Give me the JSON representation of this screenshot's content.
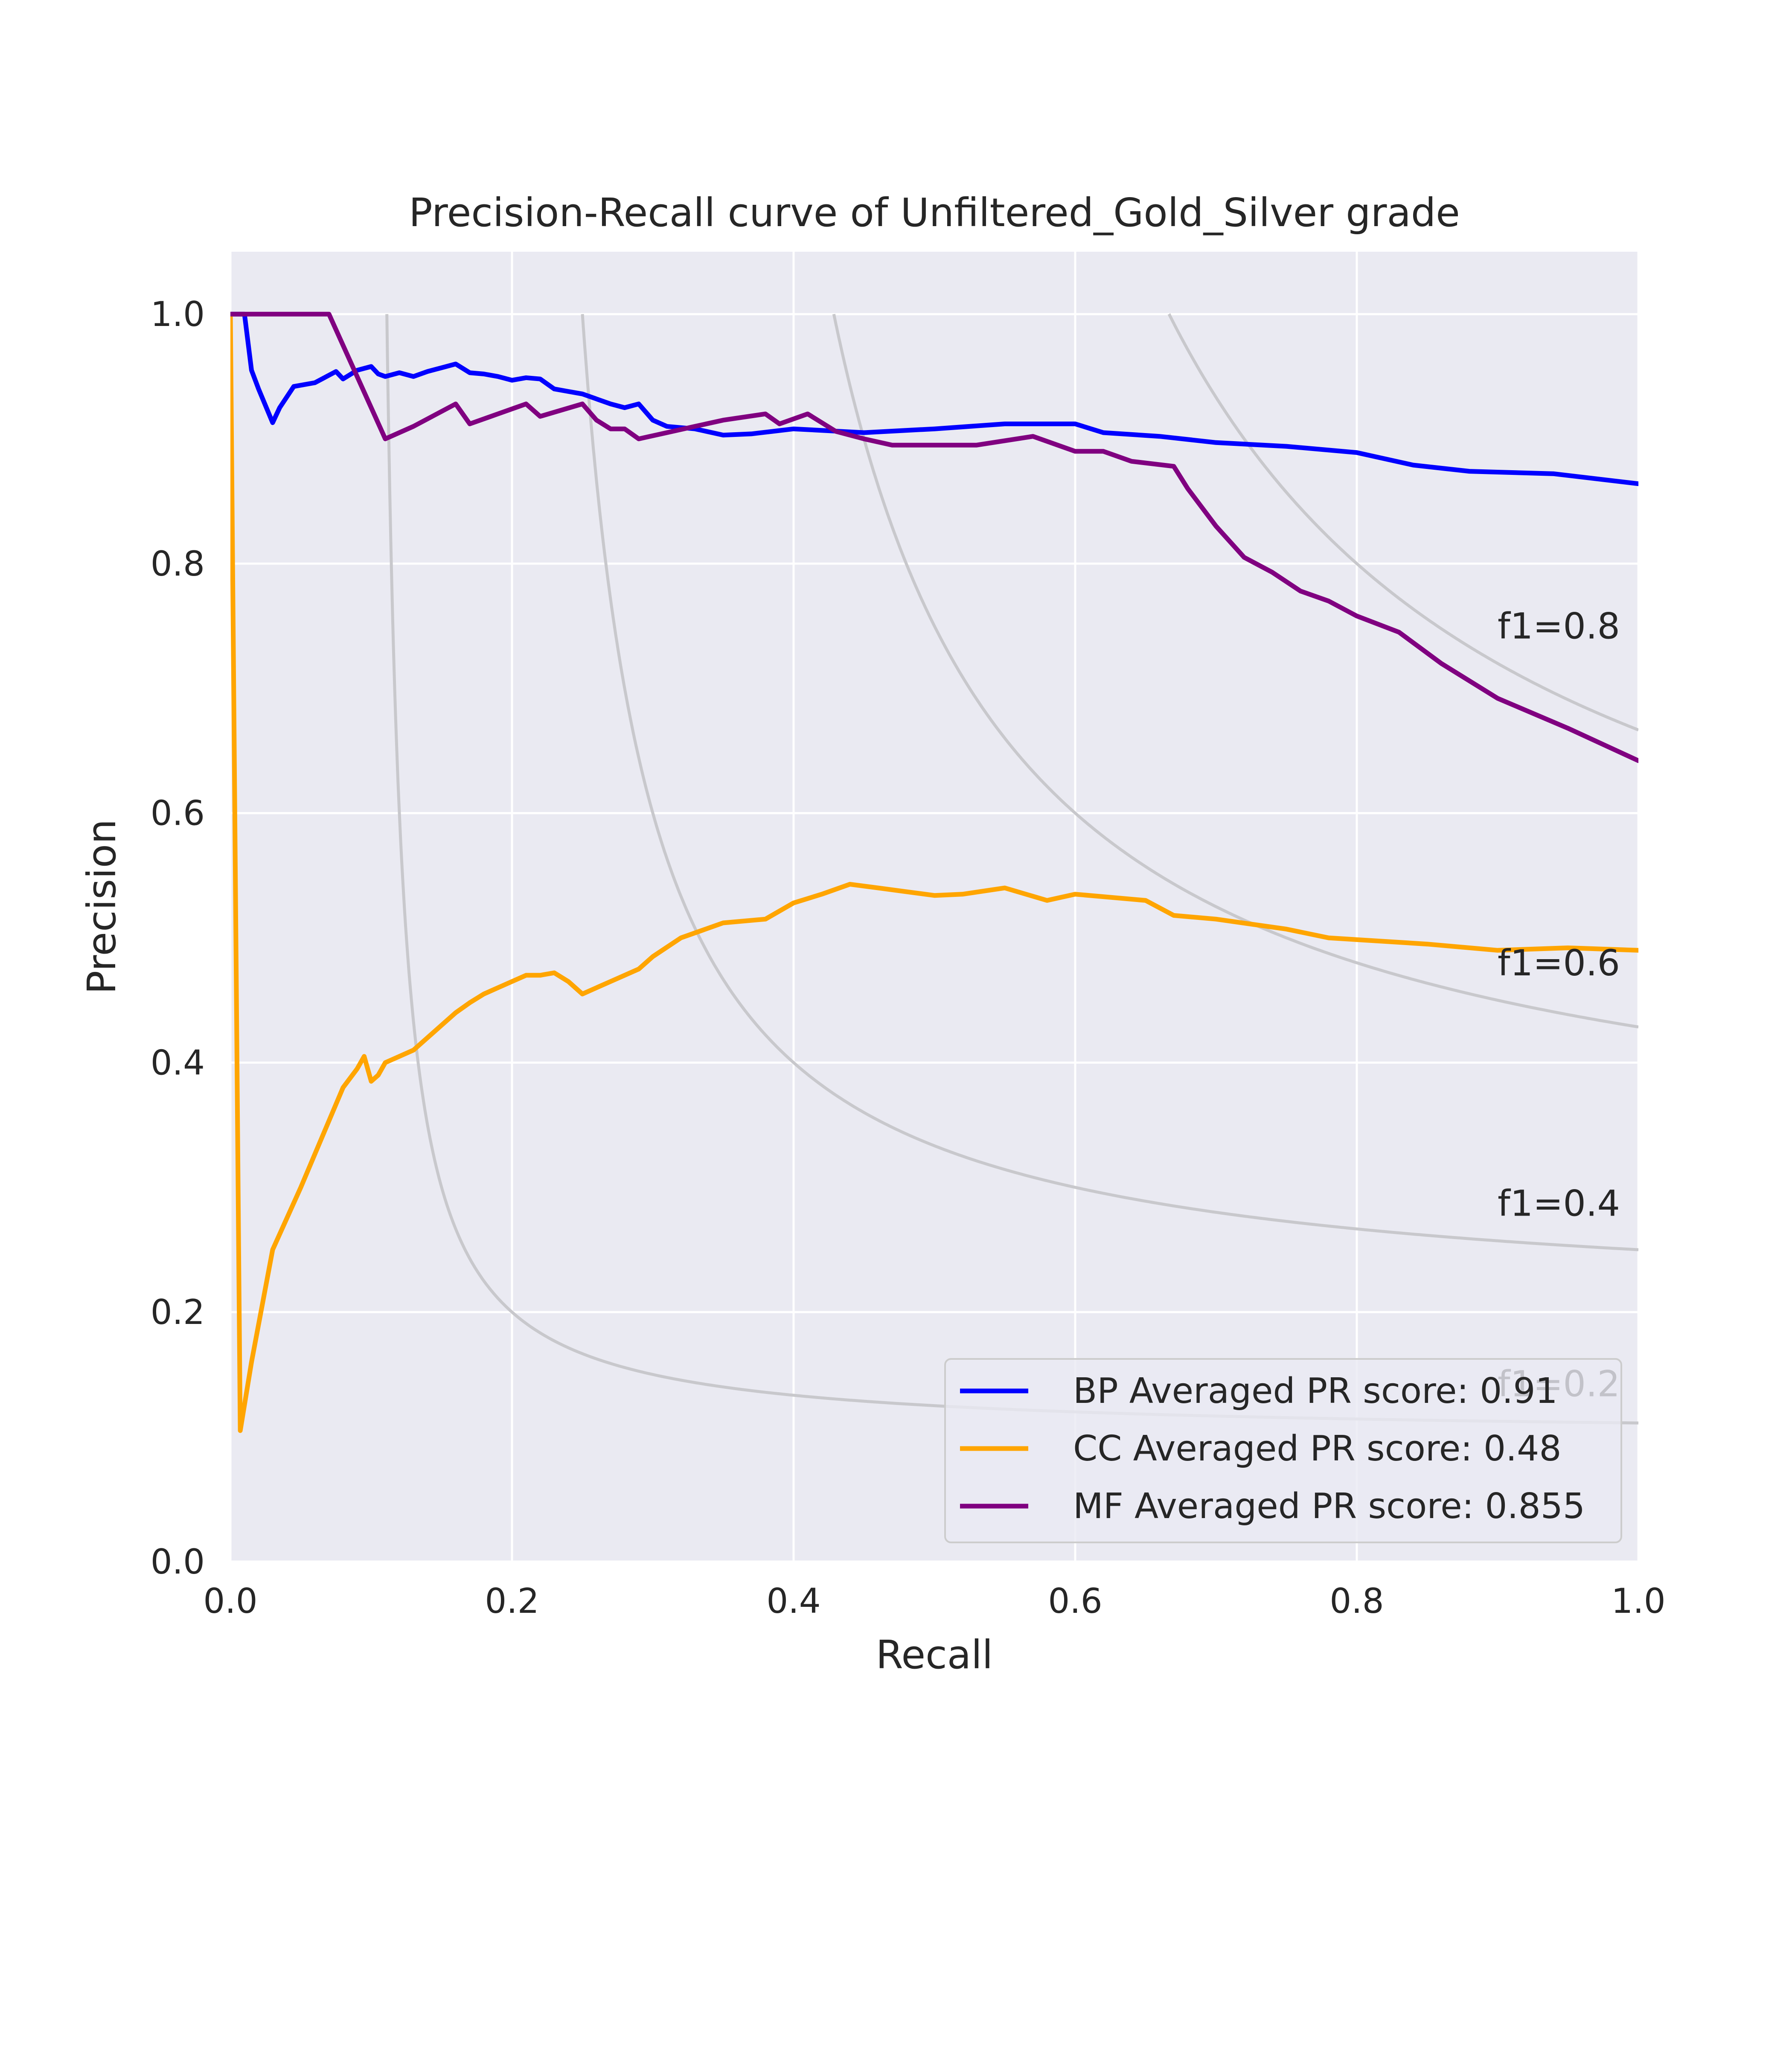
{
  "chart_data": {
    "type": "line",
    "title": "Precision-Recall curve of Unfiltered_Gold_Silver grade",
    "xlabel": "Recall",
    "ylabel": "Precision",
    "xlim": [
      0.0,
      1.0
    ],
    "ylim": [
      0.0,
      1.05
    ],
    "xticks": [
      "0.0",
      "0.2",
      "0.4",
      "0.6",
      "0.8",
      "1.0"
    ],
    "yticks": [
      "0.0",
      "0.2",
      "0.4",
      "0.6",
      "0.8",
      "1.0"
    ],
    "grid": true,
    "legend_position": "lower-right",
    "colors": {
      "background": "#eaeaf2",
      "grid": "#ffffff",
      "iso_f1": "#c8c8cc"
    },
    "iso_f1_labels": [
      "f1=0.2",
      "f1=0.4",
      "f1=0.6",
      "f1=0.8"
    ],
    "iso_f1_values": [
      0.2,
      0.4,
      0.6,
      0.8
    ],
    "series": [
      {
        "name": "BP Averaged PR score: 0.91",
        "color": "#0000ff",
        "x": [
          0.0,
          0.01,
          0.015,
          0.02,
          0.03,
          0.035,
          0.045,
          0.06,
          0.075,
          0.08,
          0.09,
          0.1,
          0.105,
          0.11,
          0.12,
          0.13,
          0.14,
          0.15,
          0.16,
          0.17,
          0.18,
          0.19,
          0.2,
          0.21,
          0.22,
          0.23,
          0.24,
          0.25,
          0.26,
          0.27,
          0.28,
          0.29,
          0.3,
          0.31,
          0.33,
          0.35,
          0.37,
          0.4,
          0.45,
          0.5,
          0.55,
          0.6,
          0.62,
          0.66,
          0.7,
          0.75,
          0.8,
          0.84,
          0.88,
          0.94,
          1.0
        ],
        "y": [
          1.0,
          1.0,
          0.955,
          0.94,
          0.913,
          0.925,
          0.942,
          0.945,
          0.954,
          0.948,
          0.955,
          0.958,
          0.952,
          0.95,
          0.953,
          0.95,
          0.954,
          0.957,
          0.96,
          0.953,
          0.952,
          0.95,
          0.947,
          0.949,
          0.948,
          0.94,
          0.938,
          0.936,
          0.932,
          0.928,
          0.925,
          0.928,
          0.915,
          0.91,
          0.908,
          0.903,
          0.904,
          0.908,
          0.905,
          0.908,
          0.912,
          0.912,
          0.905,
          0.902,
          0.897,
          0.894,
          0.889,
          0.879,
          0.874,
          0.872,
          0.864
        ]
      },
      {
        "name": "CC Averaged PR score: 0.48",
        "color": "#ffa500",
        "x": [
          0.0,
          0.007,
          0.015,
          0.03,
          0.05,
          0.065,
          0.08,
          0.09,
          0.095,
          0.1,
          0.105,
          0.11,
          0.12,
          0.13,
          0.14,
          0.15,
          0.16,
          0.17,
          0.18,
          0.19,
          0.2,
          0.21,
          0.22,
          0.23,
          0.24,
          0.25,
          0.26,
          0.27,
          0.28,
          0.29,
          0.3,
          0.32,
          0.35,
          0.38,
          0.4,
          0.42,
          0.44,
          0.46,
          0.48,
          0.5,
          0.52,
          0.55,
          0.58,
          0.6,
          0.65,
          0.67,
          0.7,
          0.75,
          0.78,
          0.85,
          0.9,
          0.95,
          1.0
        ],
        "y": [
          1.0,
          0.105,
          0.16,
          0.25,
          0.3,
          0.34,
          0.38,
          0.395,
          0.405,
          0.385,
          0.39,
          0.4,
          0.405,
          0.41,
          0.42,
          0.43,
          0.44,
          0.448,
          0.455,
          0.46,
          0.465,
          0.47,
          0.47,
          0.472,
          0.465,
          0.455,
          0.46,
          0.465,
          0.47,
          0.475,
          0.485,
          0.5,
          0.512,
          0.515,
          0.528,
          0.535,
          0.543,
          0.54,
          0.537,
          0.534,
          0.535,
          0.54,
          0.53,
          0.535,
          0.53,
          0.518,
          0.515,
          0.507,
          0.5,
          0.495,
          0.49,
          0.492,
          0.49
        ]
      },
      {
        "name": "MF Averaged PR score: 0.855",
        "color": "#800080",
        "x": [
          0.0,
          0.07,
          0.11,
          0.13,
          0.16,
          0.17,
          0.19,
          0.21,
          0.22,
          0.25,
          0.26,
          0.27,
          0.28,
          0.29,
          0.31,
          0.33,
          0.35,
          0.38,
          0.39,
          0.41,
          0.43,
          0.45,
          0.47,
          0.5,
          0.53,
          0.57,
          0.6,
          0.62,
          0.64,
          0.67,
          0.68,
          0.7,
          0.72,
          0.74,
          0.76,
          0.78,
          0.8,
          0.83,
          0.86,
          0.9,
          0.95,
          1.0
        ],
        "y": [
          1.0,
          1.0,
          0.9,
          0.91,
          0.928,
          0.912,
          0.92,
          0.928,
          0.918,
          0.928,
          0.915,
          0.908,
          0.908,
          0.9,
          0.905,
          0.91,
          0.915,
          0.92,
          0.912,
          0.92,
          0.906,
          0.9,
          0.895,
          0.895,
          0.895,
          0.902,
          0.89,
          0.89,
          0.882,
          0.878,
          0.86,
          0.83,
          0.805,
          0.793,
          0.778,
          0.77,
          0.758,
          0.745,
          0.72,
          0.692,
          0.668,
          0.642
        ]
      }
    ]
  }
}
